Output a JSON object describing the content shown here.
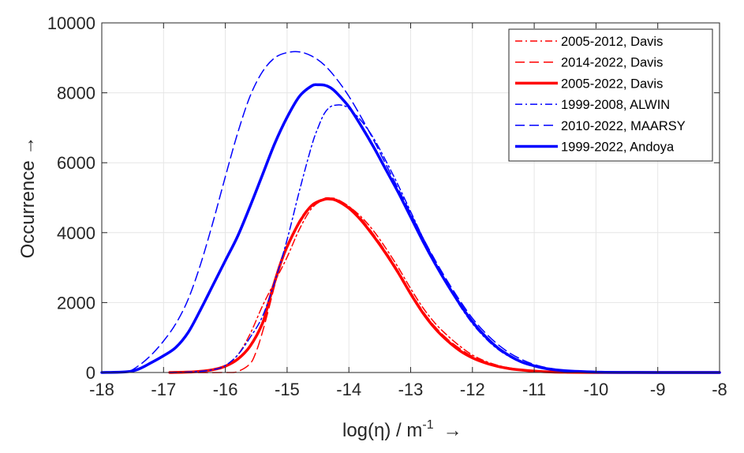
{
  "chart_data": {
    "type": "line",
    "xlabel": "log(η) / m",
    "xlabel_superscript": "-1",
    "xlabel_arrow": "→",
    "ylabel": "Occurrence →",
    "xlim": [
      -18,
      -8
    ],
    "ylim": [
      0,
      10000
    ],
    "xticks": [
      -18,
      -17,
      -16,
      -15,
      -14,
      -13,
      -12,
      -11,
      -10,
      -9,
      -8
    ],
    "xtick_labels": [
      "-18",
      "-17",
      "-16",
      "-15",
      "-14",
      "-13",
      "-12",
      "-11",
      "-10",
      "-9",
      "-8"
    ],
    "yticks": [
      0,
      2000,
      4000,
      6000,
      8000,
      10000
    ],
    "ytick_labels": [
      "0",
      "2000",
      "4000",
      "6000",
      "8000",
      "10000"
    ],
    "grid": true,
    "legend_position": "top-right",
    "series": [
      {
        "name": "2005-2012, Davis",
        "color": "#ff0000",
        "style": "dashdot",
        "width": "thin",
        "x": [
          -16.9,
          -16.5,
          -16.2,
          -16,
          -15.8,
          -15.6,
          -15.4,
          -15.2,
          -15,
          -14.8,
          -14.6,
          -14.4,
          -14.3,
          -14.2,
          -14,
          -13.8,
          -13.6,
          -13.4,
          -13.2,
          -13,
          -12.8,
          -12.6,
          -12.4,
          -12.2,
          -12,
          -11.8,
          -11.6,
          -11.4,
          -11.2,
          -11,
          -10.8,
          -10.5,
          -10,
          -9,
          -8
        ],
        "y": [
          0,
          20,
          80,
          200,
          500,
          1100,
          1900,
          2600,
          3300,
          4100,
          4700,
          4950,
          4980,
          4950,
          4750,
          4450,
          4050,
          3550,
          3000,
          2400,
          1850,
          1400,
          1050,
          750,
          500,
          330,
          210,
          130,
          80,
          50,
          30,
          10,
          2,
          0,
          0
        ]
      },
      {
        "name": "2014-2022, Davis",
        "color": "#ff0000",
        "style": "dashed",
        "width": "thin",
        "x": [
          -16.9,
          -16,
          -15.8,
          -15.6,
          -15.5,
          -15.4,
          -15.3,
          -15.2,
          -15.1,
          -15,
          -14.8,
          -14.6,
          -14.4,
          -14.3,
          -14.2,
          -14,
          -13.8,
          -13.6,
          -13.4,
          -13.2,
          -13,
          -12.8,
          -12.6,
          -12.4,
          -12.2,
          -12,
          -11.8,
          -11.6,
          -11.4,
          -11.2,
          -11,
          -10.8,
          -10.5,
          -10,
          -9,
          -8
        ],
        "y": [
          0,
          0,
          30,
          250,
          600,
          1150,
          1800,
          2500,
          3100,
          3600,
          4350,
          4800,
          4980,
          4990,
          4960,
          4750,
          4400,
          3950,
          3450,
          2900,
          2300,
          1750,
          1300,
          950,
          680,
          460,
          310,
          200,
          130,
          80,
          50,
          30,
          10,
          2,
          0,
          0
        ]
      },
      {
        "name": "2005-2022, Davis",
        "color": "#ff0000",
        "style": "solid",
        "width": "thick",
        "x": [
          -16.9,
          -16.5,
          -16.2,
          -16,
          -15.8,
          -15.6,
          -15.4,
          -15.3,
          -15.2,
          -15.1,
          -15,
          -14.8,
          -14.6,
          -14.4,
          -14.3,
          -14.2,
          -14,
          -13.8,
          -13.6,
          -13.4,
          -13.2,
          -13,
          -12.8,
          -12.6,
          -12.4,
          -12.2,
          -12,
          -11.8,
          -11.6,
          -11.4,
          -11.2,
          -11,
          -10.8,
          -10.5,
          -10,
          -9,
          -8
        ],
        "y": [
          0,
          20,
          80,
          180,
          380,
          750,
          1400,
          2000,
          2600,
          3150,
          3600,
          4300,
          4780,
          4950,
          4960,
          4920,
          4700,
          4350,
          3900,
          3400,
          2850,
          2250,
          1700,
          1250,
          900,
          620,
          420,
          280,
          180,
          110,
          70,
          40,
          20,
          8,
          1,
          0,
          0
        ]
      },
      {
        "name": "1999-2008, ALWIN",
        "color": "#0000ff",
        "style": "dashdot",
        "width": "thin",
        "x": [
          -16.9,
          -16.5,
          -16.2,
          -16,
          -15.8,
          -15.6,
          -15.4,
          -15.2,
          -15,
          -14.8,
          -14.6,
          -14.5,
          -14.4,
          -14.3,
          -14.2,
          -14.1,
          -14,
          -13.8,
          -13.6,
          -13.4,
          -13.2,
          -13,
          -12.8,
          -12.6,
          -12.4,
          -12.2,
          -12,
          -11.8,
          -11.6,
          -11.4,
          -11.2,
          -11,
          -10.8,
          -10.5,
          -10,
          -9.5,
          -9,
          -8
        ],
        "y": [
          0,
          20,
          80,
          200,
          500,
          1000,
          1600,
          2600,
          3800,
          5200,
          6500,
          7000,
          7400,
          7600,
          7650,
          7640,
          7550,
          7200,
          6700,
          6050,
          5350,
          4600,
          3850,
          3150,
          2500,
          1900,
          1400,
          1000,
          680,
          450,
          280,
          170,
          100,
          45,
          12,
          3,
          0,
          0
        ]
      },
      {
        "name": "2010-2022, MAARSY",
        "color": "#0000ff",
        "style": "dashed",
        "width": "thin",
        "x": [
          -18,
          -17.6,
          -17.4,
          -17.2,
          -17,
          -16.8,
          -16.6,
          -16.4,
          -16.2,
          -16,
          -15.8,
          -15.6,
          -15.4,
          -15.2,
          -15,
          -14.8,
          -14.6,
          -14.4,
          -14.2,
          -14,
          -13.8,
          -13.6,
          -13.4,
          -13.2,
          -13,
          -12.8,
          -12.6,
          -12.4,
          -12.2,
          -12,
          -11.8,
          -11.6,
          -11.4,
          -11.2,
          -11,
          -10.8,
          -10.5,
          -10,
          -9.5,
          -9,
          -8
        ],
        "y": [
          0,
          20,
          200,
          500,
          900,
          1400,
          2100,
          3100,
          4300,
          5600,
          6850,
          7900,
          8600,
          9000,
          9150,
          9170,
          9050,
          8800,
          8400,
          7900,
          7300,
          6650,
          5950,
          5250,
          4550,
          3850,
          3200,
          2600,
          2050,
          1550,
          1150,
          820,
          560,
          370,
          230,
          140,
          60,
          15,
          4,
          1,
          0
        ]
      },
      {
        "name": "1999-2022, Andoya",
        "color": "#0000ff",
        "style": "solid",
        "width": "thick",
        "x": [
          -18,
          -17.6,
          -17.4,
          -17.2,
          -17,
          -16.8,
          -16.6,
          -16.4,
          -16.2,
          -16,
          -15.8,
          -15.6,
          -15.4,
          -15.2,
          -15,
          -14.8,
          -14.6,
          -14.5,
          -14.4,
          -14.3,
          -14.2,
          -14,
          -13.8,
          -13.6,
          -13.4,
          -13.2,
          -13,
          -12.8,
          -12.6,
          -12.4,
          -12.2,
          -12,
          -11.8,
          -11.6,
          -11.4,
          -11.2,
          -11,
          -10.8,
          -10.5,
          -10,
          -9.5,
          -9,
          -8
        ],
        "y": [
          0,
          20,
          100,
          280,
          480,
          720,
          1150,
          1800,
          2500,
          3200,
          3900,
          4750,
          5650,
          6550,
          7300,
          7900,
          8200,
          8230,
          8220,
          8150,
          8000,
          7600,
          7050,
          6450,
          5800,
          5150,
          4450,
          3750,
          3100,
          2500,
          1950,
          1450,
          1050,
          720,
          480,
          300,
          190,
          110,
          50,
          12,
          3,
          1,
          0
        ]
      }
    ]
  }
}
